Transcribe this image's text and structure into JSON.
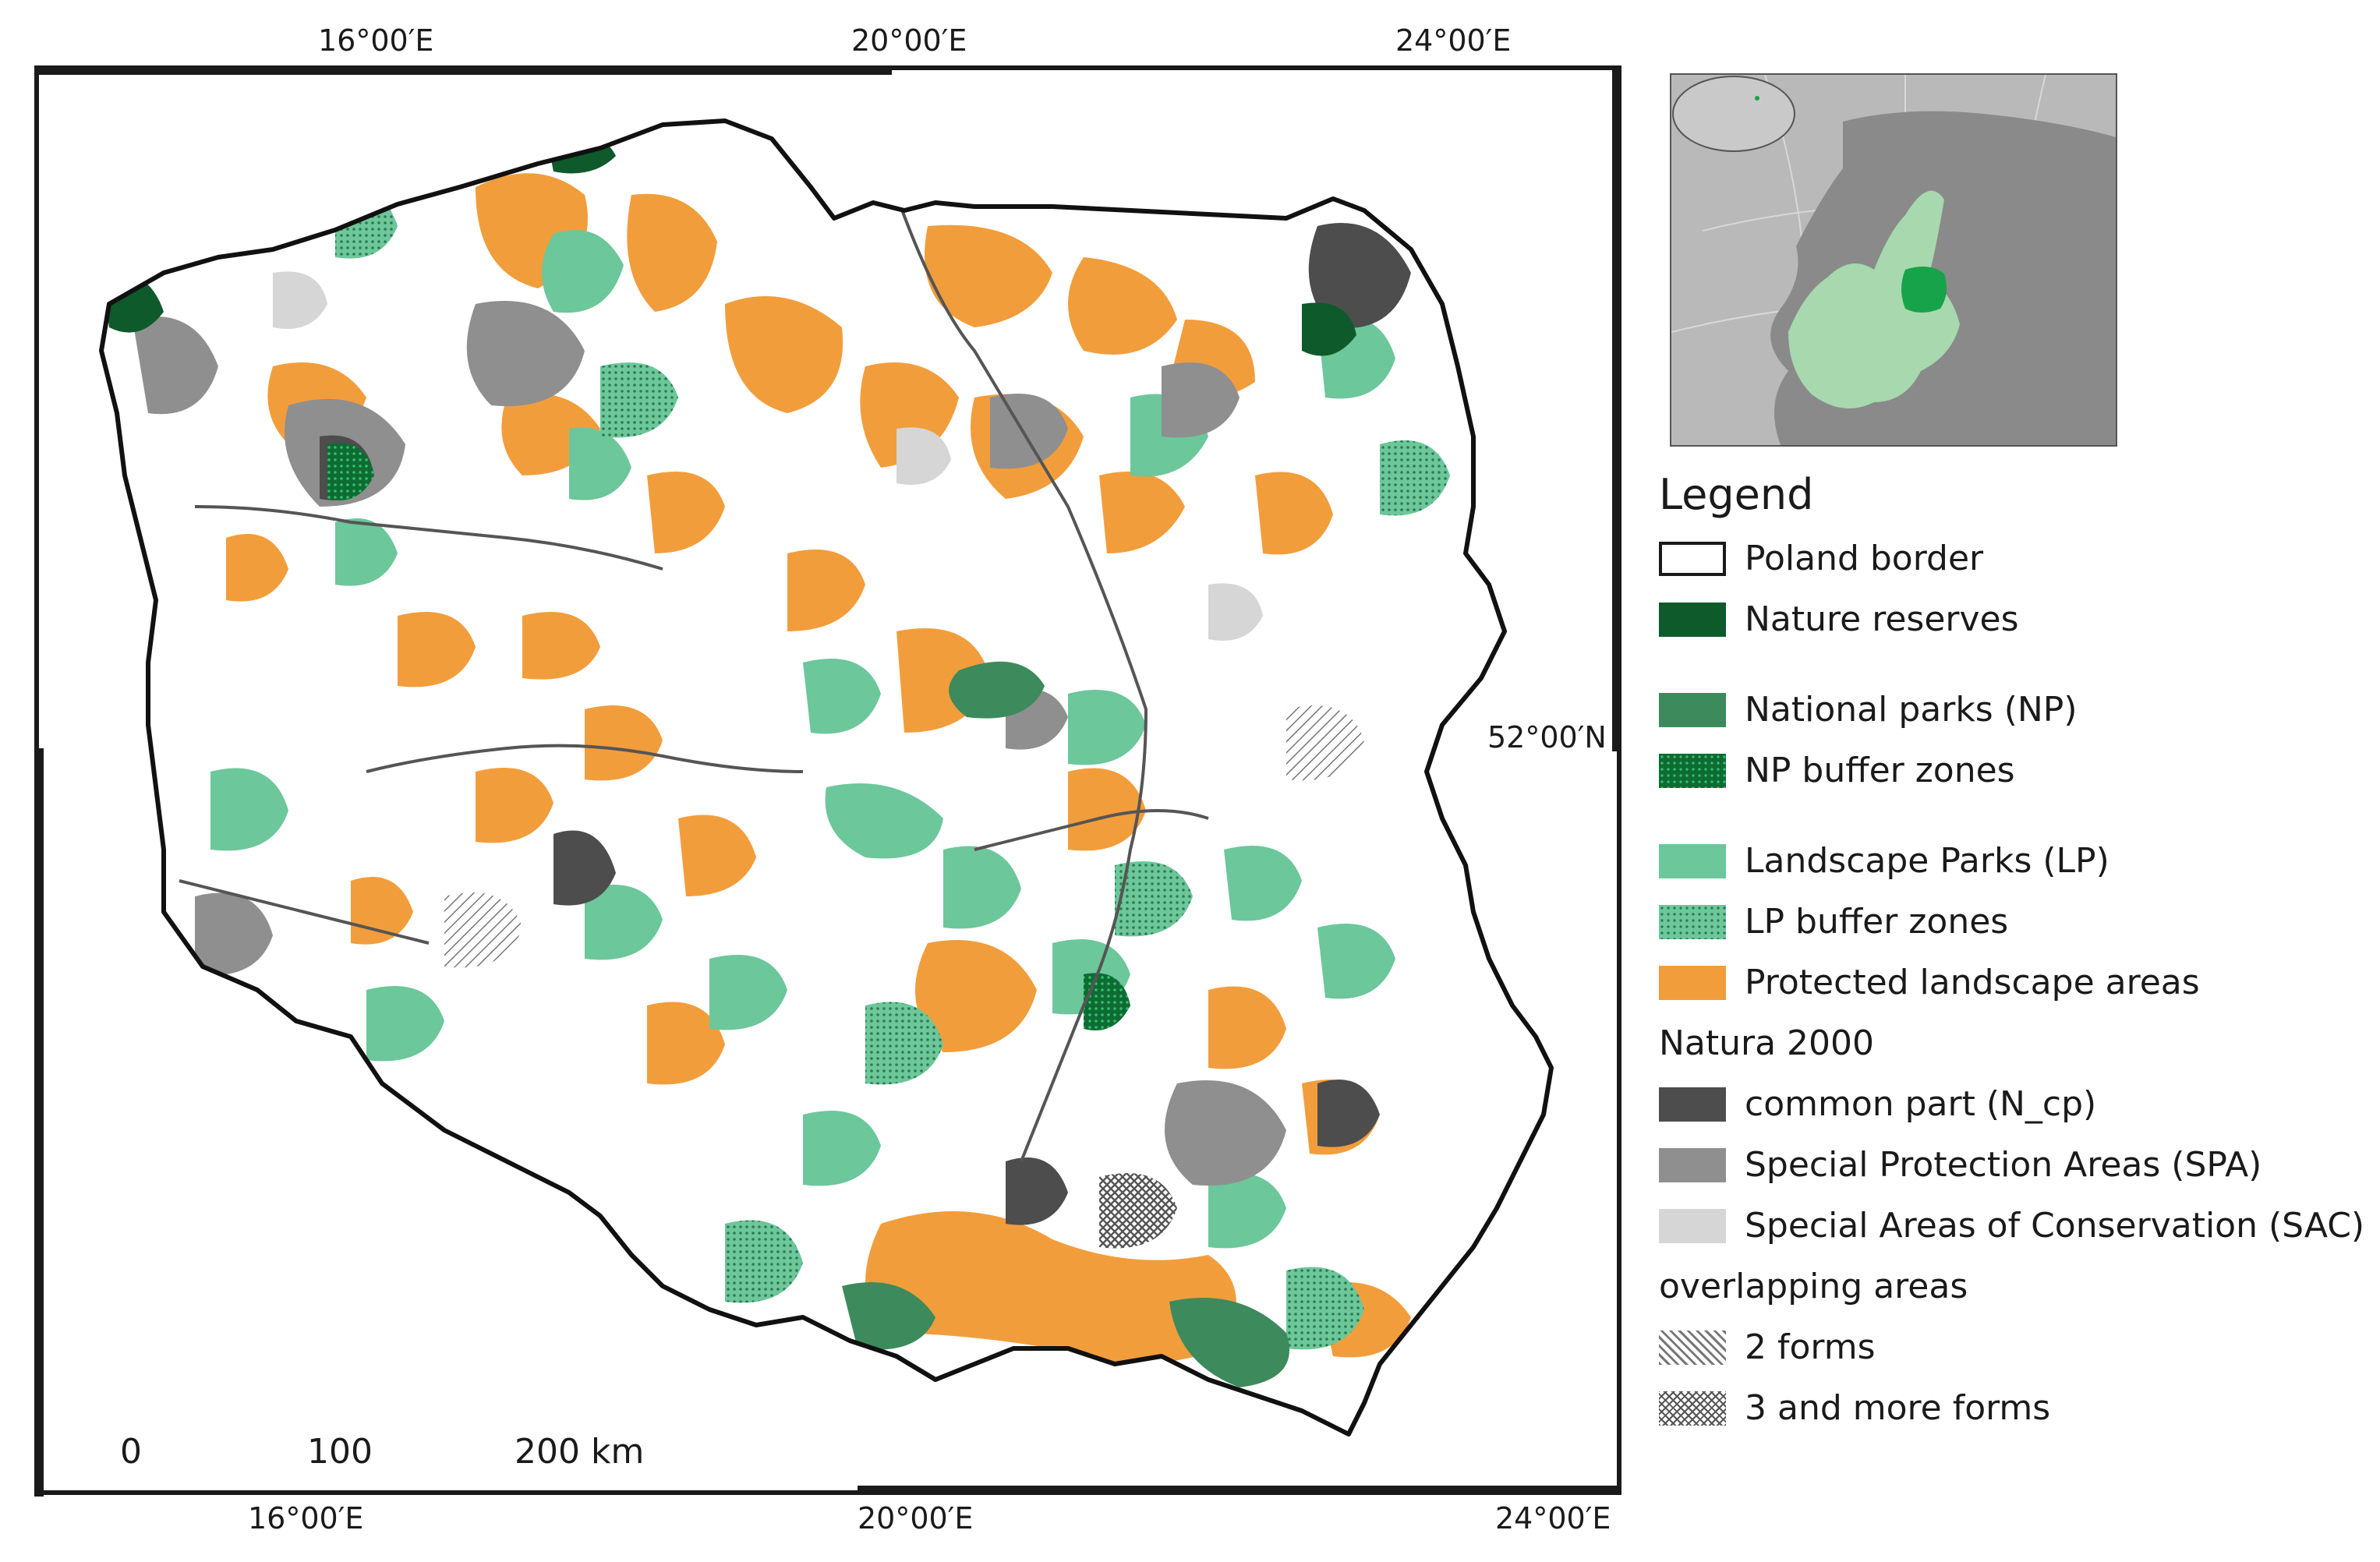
{
  "map": {
    "top_lon_labels": [
      "16°00′E",
      "20°00′E",
      "24°00′E"
    ],
    "bottom_lon_labels": [
      "16°00′E",
      "20°00′E",
      "24°00′E"
    ],
    "lat_label": "52°00′N"
  },
  "scale_bar": {
    "labels": [
      "0",
      "100",
      "200 km"
    ]
  },
  "legend": {
    "title": "Legend",
    "items": [
      {
        "label": "Poland border",
        "color": "#ffffff",
        "pattern": "outline"
      },
      {
        "label": "Nature reserves",
        "color": "#0e5a2a"
      },
      {
        "label": "National parks (NP)",
        "color": "#3d8a5c"
      },
      {
        "label": "NP buffer zones",
        "color": "#159a4a",
        "pattern": "dots"
      },
      {
        "label": "Landscape Parks (LP)",
        "color": "#6cc79a"
      },
      {
        "label": "LP buffer zones",
        "color": "#4fa873",
        "pattern": "dots"
      },
      {
        "label": "Protected landscape areas",
        "color": "#f29d3c"
      }
    ],
    "natura_heading": "Natura 2000",
    "natura_items": [
      {
        "label": "common part (N_cp)",
        "color": "#4d4d4d"
      },
      {
        "label": "Special Protection Areas (SPA)",
        "color": "#8f8f8f"
      },
      {
        "label": "Special Areas of Conservation (SAC)",
        "color": "#d6d6d6"
      }
    ],
    "overlap_heading": "overlapping areas",
    "overlap_items": [
      {
        "label": "2 forms",
        "pattern": "hatch"
      },
      {
        "label": "3 and more forms",
        "pattern": "crosshatch"
      }
    ]
  },
  "inset": {
    "highlight_color": "#16a34a",
    "eu_color": "#a7d8ae",
    "land_color": "#8a8a8a",
    "sea_color": "#b9b9b9"
  }
}
